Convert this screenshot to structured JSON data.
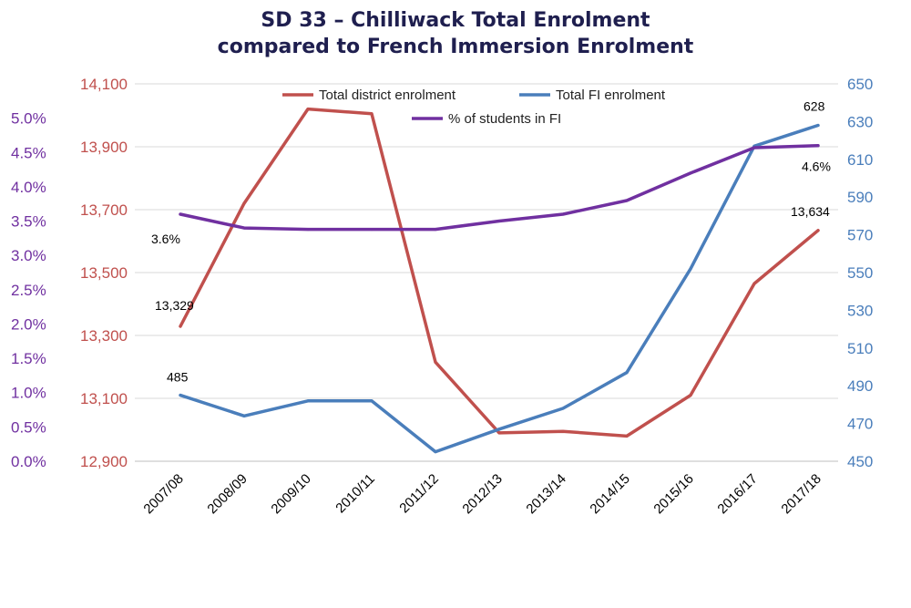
{
  "title": {
    "line1": "SD 33 – Chilliwack Total Enrolment",
    "line2": "compared to French Immersion Enrolment"
  },
  "chart_data": {
    "type": "line",
    "categories": [
      "2007/08",
      "2008/09",
      "2009/10",
      "2010/11",
      "2011/12",
      "2012/13",
      "2013/14",
      "2014/15",
      "2015/16",
      "2016/17",
      "2017/18"
    ],
    "series": [
      {
        "name": "Total district enrolment",
        "axis": "left-enrolment",
        "color": "#c0504d",
        "values": [
          13329,
          13720,
          14020,
          14005,
          13215,
          12990,
          12995,
          12980,
          13110,
          13465,
          13634
        ]
      },
      {
        "name": "Total FI enrolment",
        "axis": "right",
        "color": "#4a7ebb",
        "values": [
          485,
          474,
          482,
          482,
          455,
          467,
          478,
          497,
          552,
          617,
          628
        ]
      },
      {
        "name": "% of students in FI",
        "axis": "left-percent",
        "color": "#7030a0",
        "values": [
          3.6,
          3.4,
          3.38,
          3.38,
          3.38,
          3.5,
          3.6,
          3.8,
          4.2,
          4.57,
          4.6
        ]
      }
    ],
    "axes": {
      "left_percent": {
        "ylim": [
          0,
          5.5
        ],
        "ticks": [
          "0.0%",
          "0.5%",
          "1.0%",
          "1.5%",
          "2.0%",
          "2.5%",
          "3.0%",
          "3.5%",
          "4.0%",
          "4.5%",
          "5.0%"
        ]
      },
      "left_enrolment": {
        "ylim": [
          12900,
          14100
        ],
        "ticks": [
          "12,900",
          "13,100",
          "13,300",
          "13,500",
          "13,700",
          "13,900",
          "14,100"
        ]
      },
      "right": {
        "ylim": [
          450,
          650
        ],
        "ticks": [
          "450",
          "470",
          "490",
          "510",
          "530",
          "550",
          "570",
          "590",
          "610",
          "630",
          "650"
        ]
      }
    },
    "data_labels": [
      {
        "series": 0,
        "index": 0,
        "text": "13,329"
      },
      {
        "series": 0,
        "index": 10,
        "text": "13,634"
      },
      {
        "series": 1,
        "index": 0,
        "text": "485"
      },
      {
        "series": 1,
        "index": 10,
        "text": "628"
      },
      {
        "series": 2,
        "index": 0,
        "text": "3.6%"
      },
      {
        "series": 2,
        "index": 10,
        "text": "4.6%"
      }
    ],
    "legend_placement": "top-center",
    "grid": true
  }
}
